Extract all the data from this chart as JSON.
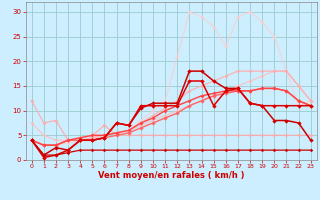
{
  "xlabel": "Vent moyen/en rafales ( km/h )",
  "bg_color": "#cceeff",
  "grid_color": "#99cccc",
  "xlim": [
    -0.5,
    23.5
  ],
  "ylim": [
    0,
    32
  ],
  "yticks": [
    0,
    5,
    10,
    15,
    20,
    25,
    30
  ],
  "xticks": [
    0,
    1,
    2,
    3,
    4,
    5,
    6,
    7,
    8,
    9,
    10,
    11,
    12,
    13,
    14,
    15,
    16,
    17,
    18,
    19,
    20,
    21,
    22,
    23
  ],
  "lines": [
    {
      "x": [
        0,
        1,
        2,
        3,
        4,
        5,
        6,
        7,
        8,
        9,
        10,
        11,
        12,
        13,
        14,
        15,
        16,
        17,
        18,
        19,
        20,
        21,
        22,
        23
      ],
      "y": [
        12,
        7.5,
        8,
        4,
        4.5,
        5,
        7,
        5,
        5,
        5,
        5,
        5,
        5,
        5,
        5,
        5,
        5,
        5,
        5,
        5,
        5,
        5,
        5,
        5
      ],
      "color": "#ffaaaa",
      "lw": 0.9,
      "marker": "D",
      "ms": 2.0,
      "alpha": 0.9,
      "zorder": 2
    },
    {
      "x": [
        0,
        1,
        2,
        3,
        4,
        5,
        6,
        7,
        8,
        9,
        10,
        11,
        12,
        13,
        14,
        15,
        16,
        17,
        18,
        19,
        20,
        21,
        22,
        23
      ],
      "y": [
        7.5,
        5,
        4,
        4,
        4.5,
        5,
        5,
        5.5,
        6,
        7,
        8,
        9,
        10,
        11,
        12,
        13,
        14,
        15,
        16,
        17,
        18,
        18,
        15,
        12
      ],
      "color": "#ffbbbb",
      "lw": 0.9,
      "marker": "D",
      "ms": 2.0,
      "alpha": 0.8,
      "zorder": 2
    },
    {
      "x": [
        0,
        1,
        2,
        3,
        4,
        5,
        6,
        7,
        8,
        9,
        10,
        11,
        12,
        13,
        14,
        15,
        16,
        17,
        18,
        19,
        20,
        21,
        22,
        23
      ],
      "y": [
        4,
        3,
        3,
        3.5,
        4,
        4.5,
        5,
        5.5,
        6,
        8,
        10,
        12,
        21,
        30,
        29,
        27,
        23,
        29,
        30,
        28,
        25,
        18,
        11,
        12
      ],
      "color": "#ffcccc",
      "lw": 0.9,
      "marker": "D",
      "ms": 2.0,
      "alpha": 0.75,
      "zorder": 2
    },
    {
      "x": [
        0,
        1,
        2,
        3,
        4,
        5,
        6,
        7,
        8,
        9,
        10,
        11,
        12,
        13,
        14,
        15,
        16,
        17,
        18,
        19,
        20,
        21,
        22,
        23
      ],
      "y": [
        4,
        3,
        3,
        4,
        4,
        4.5,
        5,
        5.5,
        6,
        7.5,
        9,
        10.5,
        12,
        14,
        15,
        16,
        17,
        18,
        18,
        18,
        18,
        18,
        15,
        12
      ],
      "color": "#ffaaaa",
      "lw": 0.9,
      "marker": "D",
      "ms": 2.0,
      "alpha": 0.85,
      "zorder": 2
    },
    {
      "x": [
        0,
        1,
        2,
        3,
        4,
        5,
        6,
        7,
        8,
        9,
        10,
        11,
        12,
        13,
        14,
        15,
        16,
        17,
        18,
        19,
        20,
        21,
        22,
        23
      ],
      "y": [
        4,
        3,
        3,
        4,
        4,
        4,
        4.5,
        5,
        5.5,
        6.5,
        7.5,
        8.5,
        9.5,
        11,
        12,
        13,
        13.5,
        14,
        14,
        14.5,
        14.5,
        14,
        12,
        11
      ],
      "color": "#ff6666",
      "lw": 1.0,
      "marker": "D",
      "ms": 2.2,
      "alpha": 1.0,
      "zorder": 3
    },
    {
      "x": [
        0,
        1,
        2,
        3,
        4,
        5,
        6,
        7,
        8,
        9,
        10,
        11,
        12,
        13,
        14,
        15,
        16,
        17,
        18,
        19,
        20,
        21,
        22,
        23
      ],
      "y": [
        4,
        1,
        2.5,
        2,
        4,
        4,
        4.5,
        7.5,
        7,
        10.5,
        11.5,
        11.5,
        11.5,
        18,
        18,
        16,
        14.5,
        14.5,
        11.5,
        11,
        8,
        8,
        7.5,
        4
      ],
      "color": "#cc0000",
      "lw": 1.1,
      "marker": "D",
      "ms": 2.2,
      "alpha": 1.0,
      "zorder": 4
    },
    {
      "x": [
        0,
        1,
        2,
        3,
        4,
        5,
        6,
        7,
        8,
        9,
        10,
        11,
        12,
        13,
        14,
        15,
        16,
        17,
        18,
        19,
        20,
        21,
        22,
        23
      ],
      "y": [
        4,
        0.5,
        1,
        2,
        4,
        4,
        4.5,
        7.5,
        7,
        11,
        11,
        11,
        11,
        16,
        16,
        11,
        14,
        14.5,
        11.5,
        11,
        11,
        11,
        11,
        11
      ],
      "color": "#dd0000",
      "lw": 1.1,
      "marker": "D",
      "ms": 2.2,
      "alpha": 1.0,
      "zorder": 4
    },
    {
      "x": [
        0,
        1,
        2,
        3,
        4,
        5,
        6,
        7,
        8,
        9,
        10,
        11,
        12,
        13,
        14,
        15,
        16,
        17,
        18,
        19,
        20,
        21,
        22,
        23
      ],
      "y": [
        4,
        1,
        1,
        1.5,
        2,
        2,
        2,
        2,
        2,
        2,
        2,
        2,
        2,
        2,
        2,
        2,
        2,
        2,
        2,
        2,
        2,
        2,
        2,
        2
      ],
      "color": "#cc0000",
      "lw": 0.9,
      "marker": "D",
      "ms": 1.8,
      "alpha": 1.0,
      "zorder": 4
    },
    {
      "x": [
        0,
        1,
        2,
        3,
        4,
        5,
        6,
        7,
        8,
        9,
        10,
        11,
        12,
        13,
        14,
        15,
        16,
        17,
        18,
        19,
        20,
        21,
        22,
        23
      ],
      "y": [
        4,
        3,
        3,
        4,
        4.5,
        5,
        5,
        5.5,
        6,
        7.5,
        8.5,
        10,
        11,
        12,
        13,
        13.5,
        14,
        14,
        14,
        14.5,
        14.5,
        14,
        12,
        11
      ],
      "color": "#ff4444",
      "lw": 1.0,
      "marker": "D",
      "ms": 2.0,
      "alpha": 1.0,
      "zorder": 3
    }
  ]
}
